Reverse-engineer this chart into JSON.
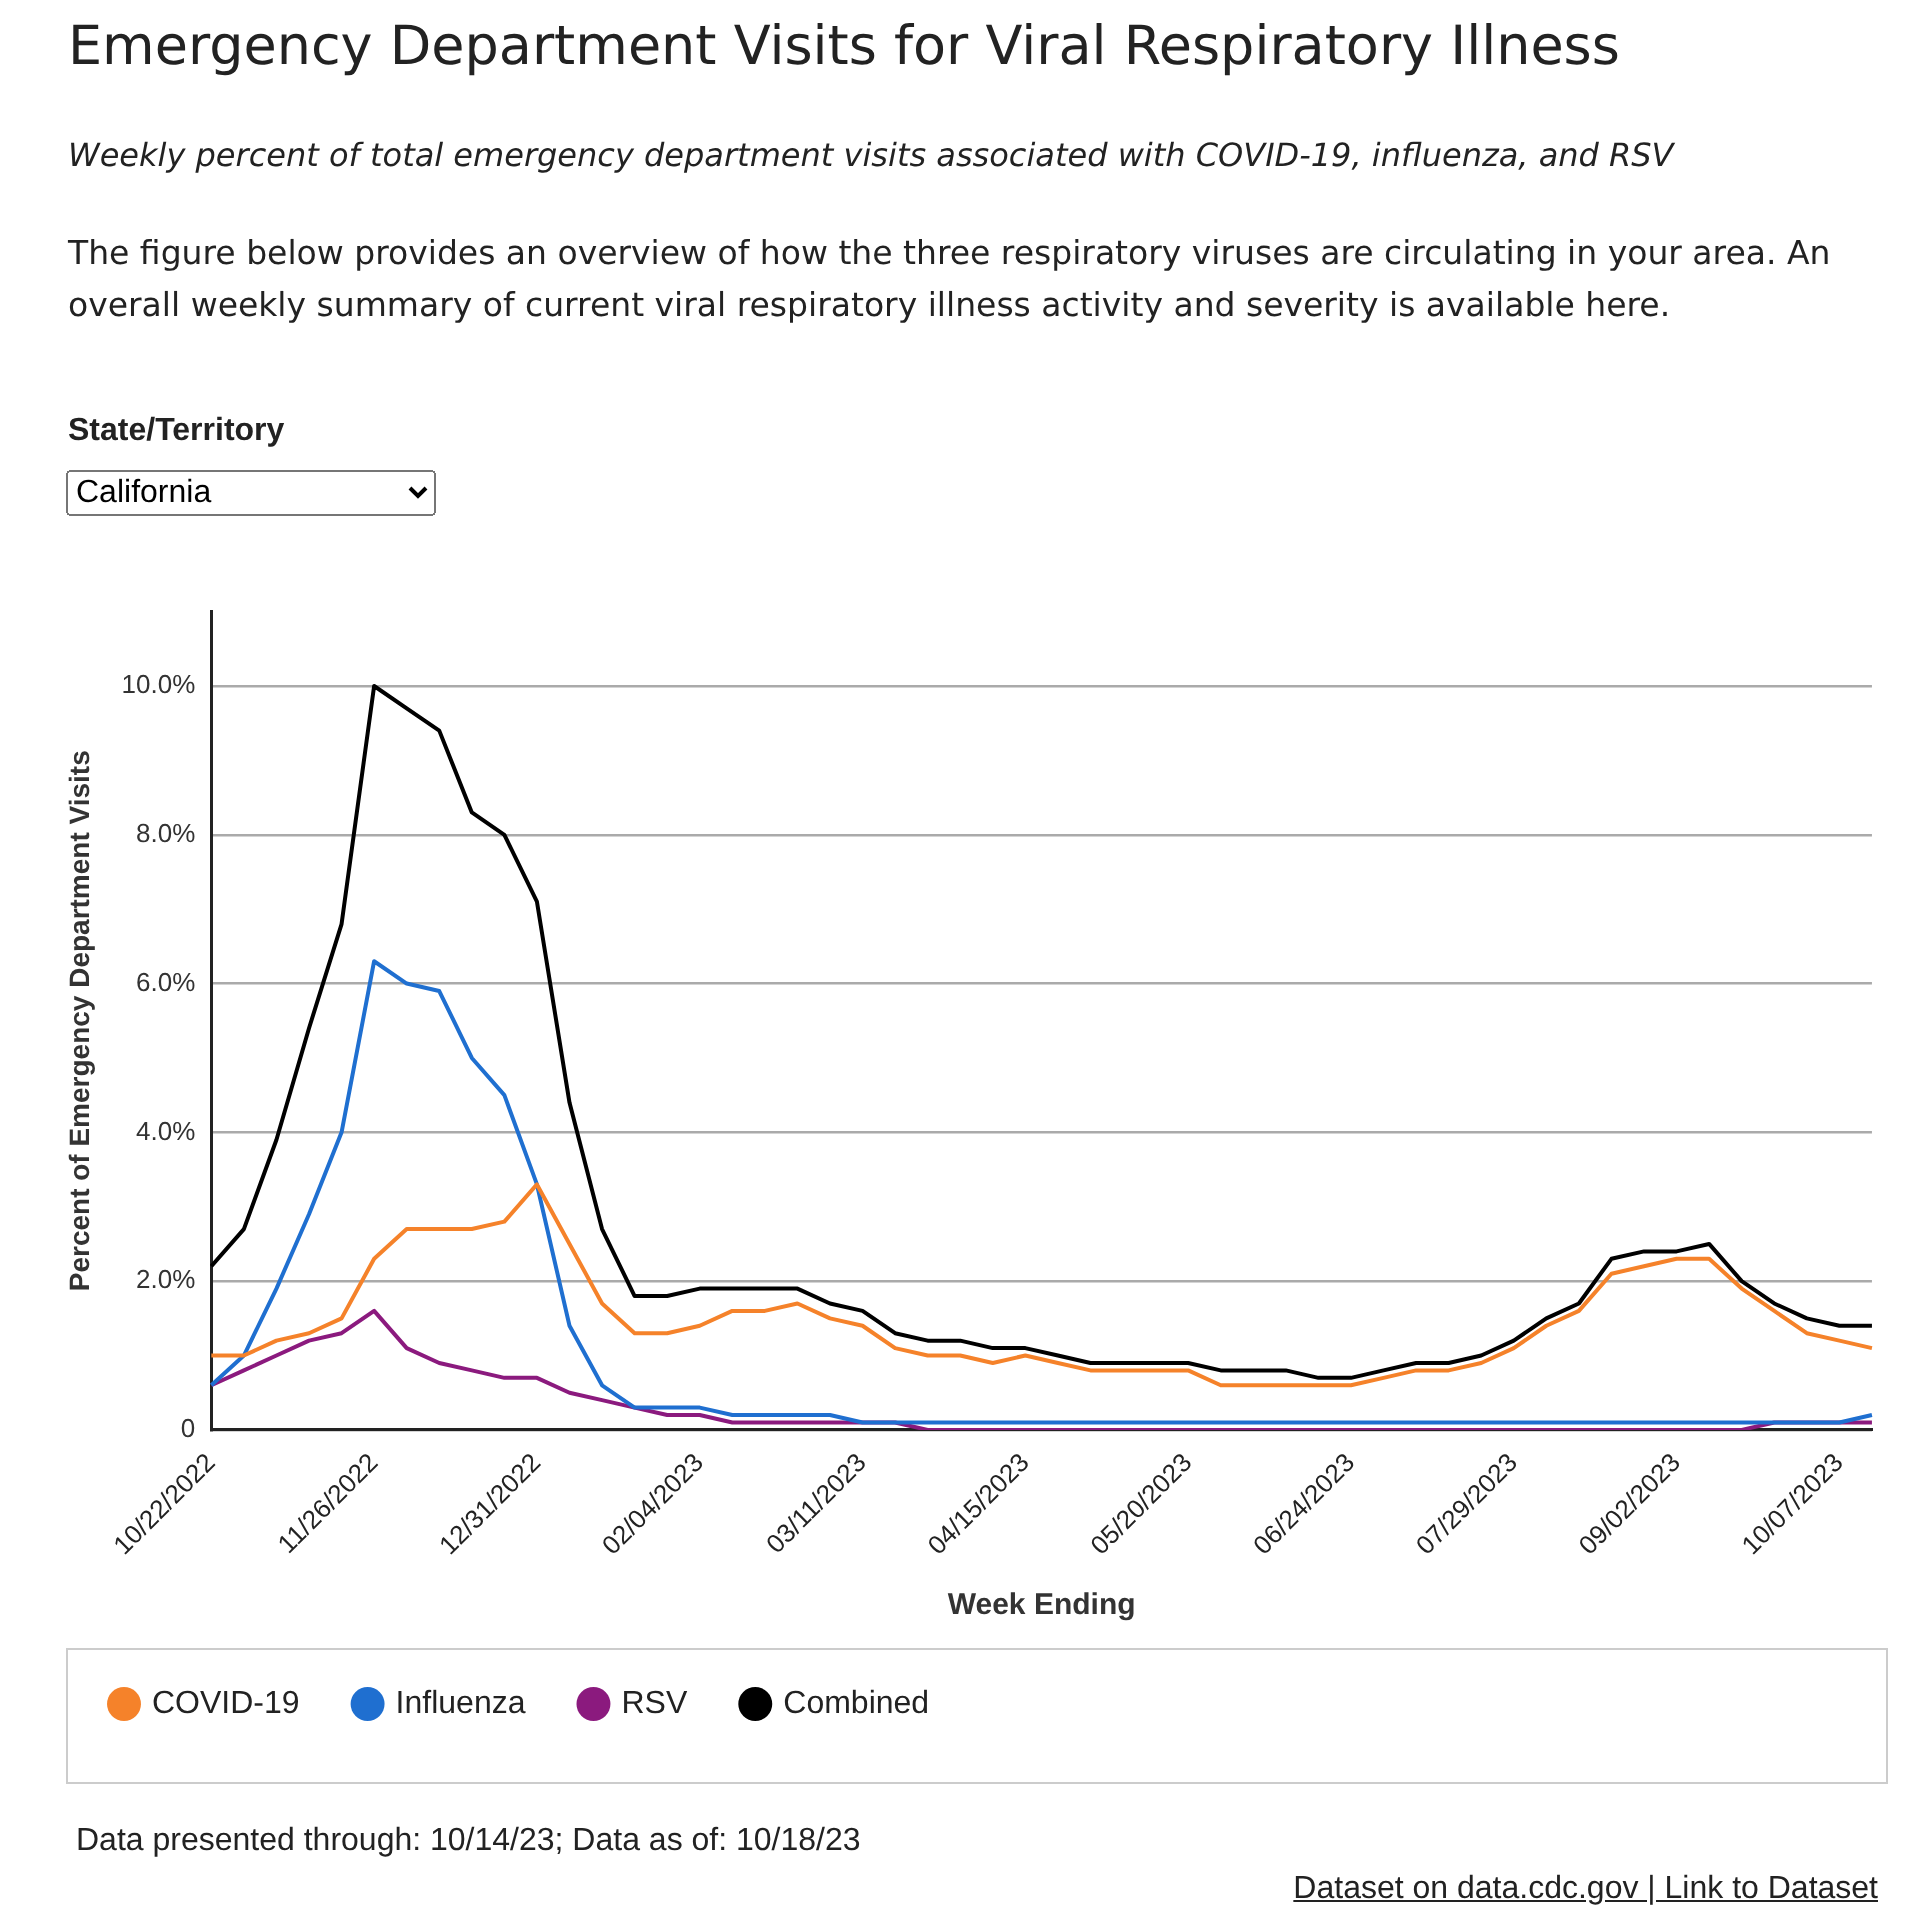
{
  "chart_data": {
    "type": "line",
    "title": "Emergency Department Visits for Viral Respiratory Illness",
    "subtitle": "Weekly percent of total emergency department visits associated with COVID-19, influenza, and RSV",
    "xlabel": "Week Ending",
    "ylabel": "Percent of Emergency Department Visits",
    "annotations": [
      "The figure below provides an overview of how the three respiratory viruses are circulating in your area. An overall weekly summary of current viral respiratory illness activity and severity is available here.",
      "State/Territory",
      "California",
      "Data presented through: 10/14/23; Data as of: 10/18/23",
      "Dataset on data.cdc.gov | Link to Dataset"
    ],
    "categories": [
      "10/22/2022",
      null,
      null,
      null,
      null,
      "11/26/2022",
      null,
      null,
      null,
      null,
      "12/31/2022",
      null,
      null,
      null,
      null,
      "02/04/2023",
      null,
      null,
      null,
      null,
      "03/11/2023",
      null,
      null,
      null,
      null,
      "04/15/2023",
      null,
      null,
      null,
      null,
      "05/20/2023",
      null,
      null,
      null,
      null,
      "06/24/2023",
      null,
      null,
      null,
      null,
      "07/29/2023",
      null,
      null,
      null,
      null,
      "09/02/2023",
      null,
      null,
      null,
      null,
      "10/07/2023",
      null
    ],
    "series": [
      {
        "name": "COVID-19",
        "color": "#f5822a",
        "values": [
          1.0,
          1.0,
          1.2,
          1.3,
          1.5,
          2.3,
          2.7,
          2.7,
          2.7,
          2.8,
          3.3,
          2.5,
          1.7,
          1.3,
          1.3,
          1.4,
          1.6,
          1.6,
          1.7,
          1.5,
          1.4,
          1.1,
          1.0,
          1.0,
          0.9,
          1.0,
          0.9,
          0.8,
          0.8,
          0.8,
          0.8,
          0.6,
          0.6,
          0.6,
          0.6,
          0.6,
          0.7,
          0.8,
          0.8,
          0.9,
          1.1,
          1.4,
          1.6,
          2.1,
          2.2,
          2.3,
          2.3,
          1.9,
          1.6,
          1.3,
          1.2,
          1.1
        ]
      },
      {
        "name": "Influenza",
        "color": "#1f6fd0",
        "values": [
          0.6,
          1.0,
          1.9,
          2.9,
          4.0,
          6.3,
          6.0,
          5.9,
          5.0,
          4.5,
          3.3,
          1.4,
          0.6,
          0.3,
          0.3,
          0.3,
          0.2,
          0.2,
          0.2,
          0.2,
          0.1,
          0.1,
          0.1,
          0.1,
          0.1,
          0.1,
          0.1,
          0.1,
          0.1,
          0.1,
          0.1,
          0.1,
          0.1,
          0.1,
          0.1,
          0.1,
          0.1,
          0.1,
          0.1,
          0.1,
          0.1,
          0.1,
          0.1,
          0.1,
          0.1,
          0.1,
          0.1,
          0.1,
          0.1,
          0.1,
          0.1,
          0.2
        ]
      },
      {
        "name": "RSV",
        "color": "#8b1a7e",
        "values": [
          0.6,
          0.8,
          1.0,
          1.2,
          1.3,
          1.6,
          1.1,
          0.9,
          0.8,
          0.7,
          0.7,
          0.5,
          0.4,
          0.3,
          0.2,
          0.2,
          0.1,
          0.1,
          0.1,
          0.1,
          0.1,
          0.1,
          0,
          0,
          0,
          0,
          0,
          0,
          0,
          0,
          0,
          0,
          0,
          0,
          0,
          0,
          0,
          0,
          0,
          0,
          0,
          0,
          0,
          0,
          0,
          0,
          0,
          0,
          0.1,
          0.1,
          0.1,
          0.1
        ]
      },
      {
        "name": "Combined",
        "color": "#000000",
        "values": [
          2.2,
          2.7,
          3.9,
          5.4,
          6.8,
          10.0,
          9.7,
          9.4,
          8.3,
          8.0,
          7.1,
          4.4,
          2.7,
          1.8,
          1.8,
          1.9,
          1.9,
          1.9,
          1.9,
          1.7,
          1.6,
          1.3,
          1.2,
          1.2,
          1.1,
          1.1,
          1.0,
          0.9,
          0.9,
          0.9,
          0.9,
          0.8,
          0.8,
          0.8,
          0.7,
          0.7,
          0.8,
          0.9,
          0.9,
          1.0,
          1.2,
          1.5,
          1.7,
          2.3,
          2.4,
          2.4,
          2.5,
          2.0,
          1.7,
          1.5,
          1.4,
          1.4
        ]
      }
    ],
    "ylim": [
      0,
      11
    ],
    "yticks": [
      {
        "value": 0,
        "label": "0"
      },
      {
        "value": 2,
        "label": "2.0%"
      },
      {
        "value": 4,
        "label": "4.0%"
      },
      {
        "value": 6,
        "label": "6.0%"
      },
      {
        "value": 8,
        "label": "8.0%"
      },
      {
        "value": 10,
        "label": "10.0%"
      }
    ],
    "grid": "y",
    "legend": "bottom",
    "marker": "none",
    "line_style": "solid"
  }
}
